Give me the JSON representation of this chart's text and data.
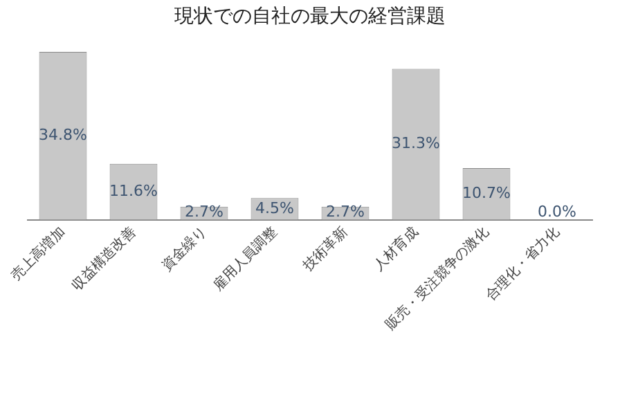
{
  "chart_data": {
    "type": "bar",
    "title": "現状での自社の最大の経営課題",
    "categories": [
      "売上高増加",
      "収益構造改善",
      "資金繰り",
      "雇用人員調整",
      "技術革新",
      "人材育成",
      "販売・受注競争の激化",
      "合理化・省力化"
    ],
    "values": [
      34.8,
      11.6,
      2.7,
      4.5,
      2.7,
      31.3,
      10.7,
      0.0
    ],
    "value_labels": [
      "34.8%",
      "11.6%",
      "2.7%",
      "4.5%",
      "2.7%",
      "31.3%",
      "10.7%",
      "0.0%"
    ],
    "color": "#c8c8c8",
    "grid": false,
    "legend": false
  }
}
